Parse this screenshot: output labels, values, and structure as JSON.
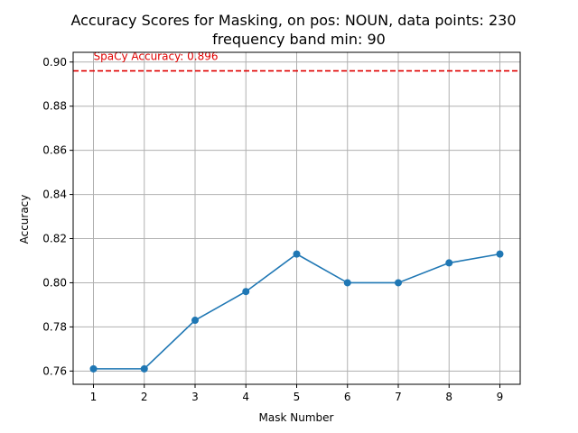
{
  "chart_data": {
    "type": "line",
    "title": "Accuracy Scores for Masking, on pos: NOUN, data points: 230",
    "subtitle": "frequency band min: 90",
    "xlabel": "Mask Number",
    "ylabel": "Accuracy",
    "x": [
      1,
      2,
      3,
      4,
      5,
      6,
      7,
      8,
      9
    ],
    "series": [
      {
        "values": [
          0.761,
          0.761,
          0.783,
          0.796,
          0.813,
          0.8,
          0.8,
          0.809,
          0.813
        ]
      }
    ],
    "xlim": [
      0.6,
      9.4
    ],
    "ylim": [
      0.754,
      0.9044
    ],
    "xticks": [
      "1",
      "2",
      "3",
      "4",
      "5",
      "6",
      "7",
      "8",
      "9"
    ],
    "yticks": [
      "0.76",
      "0.78",
      "0.80",
      "0.82",
      "0.84",
      "0.86",
      "0.88",
      "0.90"
    ],
    "reference_line": {
      "value": 0.896,
      "label": "SpaCy Accuracy: 0.896",
      "color": "#e00000",
      "style": "dashed"
    },
    "grid": true,
    "line_color": "#1f77b4"
  }
}
